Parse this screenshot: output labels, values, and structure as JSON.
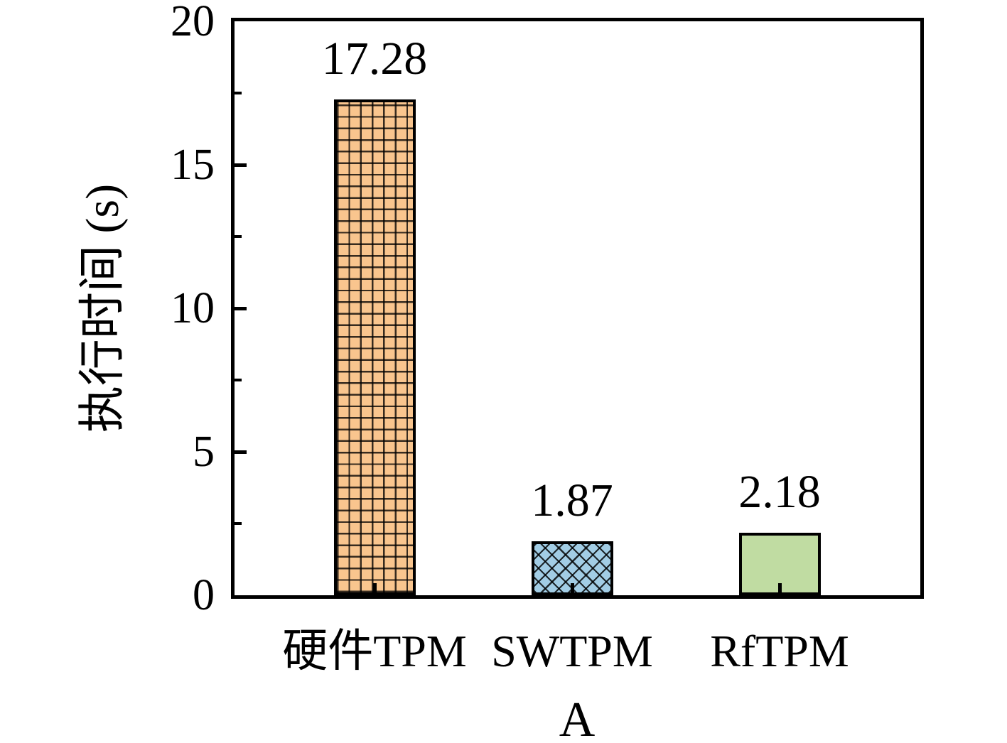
{
  "chart_data": {
    "type": "bar",
    "categories": [
      "硬件TPM",
      "SWTPM",
      "RfTPM"
    ],
    "values": [
      17.28,
      1.87,
      2.18
    ],
    "value_labels": [
      "17.28",
      "1.87",
      "2.18"
    ],
    "title": "",
    "xlabel": "A",
    "ylabel": "执行时间 (s)",
    "ylim": [
      0,
      20
    ],
    "ytick_values": [
      0,
      5,
      10,
      15,
      20
    ],
    "ytick_labels": [
      "0",
      "5",
      "10",
      "15",
      "20"
    ],
    "minor_ytick_values": [
      2.5,
      7.5,
      12.5,
      17.5
    ],
    "bar_colors": [
      "#f9c58e",
      "#a2cde5",
      "#c0dca2"
    ],
    "bar_hatches": [
      "grid",
      "diagonal-cross",
      "none"
    ],
    "edge_color": "#000000",
    "text_color": "#000000",
    "grid": false,
    "legend_position": "none"
  }
}
